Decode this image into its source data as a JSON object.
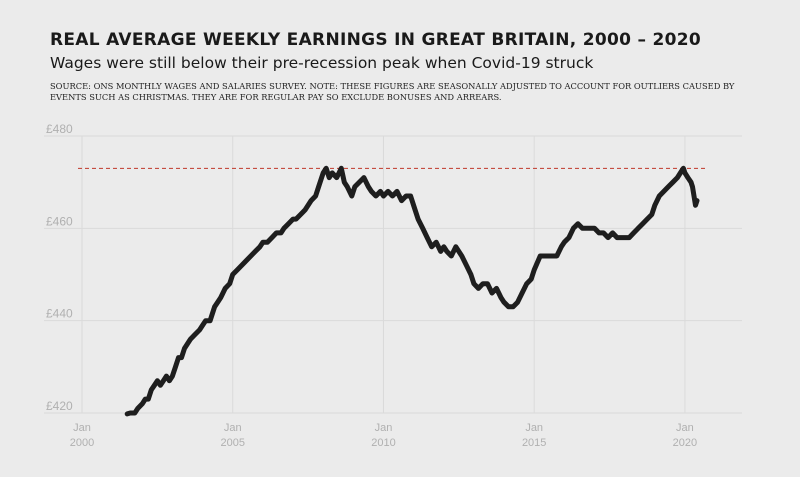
{
  "header": {
    "title": "REAL AVERAGE WEEKLY EARNINGS IN GREAT BRITAIN, 2000 – 2020",
    "subtitle": "Wages were still below their pre-recession peak when Covid-19 struck",
    "source": "SOURCE: ONS MONTHLY WAGES AND SALARIES SURVEY. NOTE: THESE FIGURES ARE SEASONALLY ADJUSTED TO ACCOUNT FOR OUTLIERS CAUSED BY EVENTS SUCH AS CHRISTMAS.  THEY ARE FOR REGULAR PAY SO EXCLUDE BONUSES AND ARREARS."
  },
  "colors": {
    "line": "#1e1e1e",
    "reference": "#c0392b",
    "grid": "#dadada",
    "background": "#ebebeb"
  },
  "chart_data": {
    "type": "line",
    "title": "REAL AVERAGE WEEKLY EARNINGS IN GREAT BRITAIN, 2000 – 2020",
    "subtitle": "Wages were still below their pre-recession peak when Covid-19 struck",
    "xlabel": "",
    "ylabel": "",
    "xlim": [
      2000.0,
      2020.5
    ],
    "ylim": [
      420,
      480
    ],
    "y_ticks": [
      420,
      440,
      460,
      480
    ],
    "y_tick_labels": [
      "£420",
      "£440",
      "£460",
      "£480"
    ],
    "x_ticks": [
      2000,
      2005,
      2010,
      2015,
      2020
    ],
    "x_tick_labels": [
      {
        "top": "Jan",
        "bottom": "2000"
      },
      {
        "top": "Jan",
        "bottom": "2005"
      },
      {
        "top": "Jan",
        "bottom": "2010"
      },
      {
        "top": "Jan",
        "bottom": "2015"
      },
      {
        "top": "Jan",
        "bottom": "2020"
      }
    ],
    "grid": "horizontal and vertical",
    "reference_line": {
      "y": 473,
      "style": "dashed",
      "color": "#c0392b"
    },
    "series": [
      {
        "x": [
          2001.5,
          2001.6,
          2001.75,
          2001.85,
          2002.0,
          2002.1,
          2002.2,
          2002.3,
          2002.4,
          2002.5,
          2002.6,
          2002.7,
          2002.8,
          2002.9,
          2003.0,
          2003.1,
          2003.2,
          2003.3,
          2003.4,
          2003.5,
          2003.6,
          2003.75,
          2003.9,
          2004.0,
          2004.1,
          2004.25,
          2004.4,
          2004.5,
          2004.6,
          2004.75,
          2004.9,
          2005.0,
          2005.15,
          2005.3,
          2005.45,
          2005.6,
          2005.75,
          2005.9,
          2006.0,
          2006.15,
          2006.3,
          2006.45,
          2006.6,
          2006.7,
          2006.85,
          2007.0,
          2007.1,
          2007.25,
          2007.4,
          2007.5,
          2007.6,
          2007.75,
          2007.85,
          2008.0,
          2008.1,
          2008.2,
          2008.3,
          2008.45,
          2008.6,
          2008.7,
          2008.8,
          2008.95,
          2009.05,
          2009.2,
          2009.35,
          2009.5,
          2009.6,
          2009.75,
          2009.9,
          2010.0,
          2010.15,
          2010.3,
          2010.45,
          2010.6,
          2010.75,
          2010.9,
          2011.0,
          2011.15,
          2011.3,
          2011.45,
          2011.6,
          2011.75,
          2011.9,
          2012.0,
          2012.1,
          2012.25,
          2012.4,
          2012.5,
          2012.6,
          2012.75,
          2012.9,
          2013.0,
          2013.15,
          2013.3,
          2013.45,
          2013.6,
          2013.75,
          2013.9,
          2014.0,
          2014.15,
          2014.3,
          2014.45,
          2014.6,
          2014.75,
          2014.9,
          2015.0,
          2015.2,
          2015.4,
          2015.6,
          2015.75,
          2015.9,
          2016.0,
          2016.15,
          2016.3,
          2016.45,
          2016.6,
          2016.75,
          2016.9,
          2017.0,
          2017.15,
          2017.3,
          2017.45,
          2017.6,
          2017.75,
          2017.9,
          2018.0,
          2018.15,
          2018.3,
          2018.45,
          2018.6,
          2018.75,
          2018.9,
          2019.0,
          2019.15,
          2019.3,
          2019.45,
          2019.6,
          2019.75,
          2019.85,
          2019.95,
          2020.0,
          2020.1,
          2020.2,
          2020.25,
          2020.3,
          2020.35,
          2020.4
        ],
        "y": [
          419.8,
          420,
          420,
          421,
          422,
          423,
          423,
          425,
          426,
          427,
          426,
          427,
          428,
          427,
          428,
          430,
          432,
          432,
          434,
          435,
          436,
          437,
          438,
          439,
          440,
          440,
          443,
          444,
          445,
          447,
          448,
          450,
          451,
          452,
          453,
          454,
          455,
          456,
          457,
          457,
          458,
          459,
          459,
          460,
          461,
          462,
          462,
          463,
          464,
          465,
          466,
          467,
          469,
          472,
          473,
          471,
          472,
          471,
          473,
          470,
          469,
          467,
          469,
          470,
          471,
          469,
          468,
          467,
          468,
          467,
          468,
          467,
          468,
          466,
          467,
          467,
          465,
          462,
          460,
          458,
          456,
          457,
          455,
          456,
          455,
          454,
          456,
          455,
          454,
          452,
          450,
          448,
          447,
          448,
          448,
          446,
          447,
          445,
          444,
          443,
          443,
          444,
          446,
          448,
          449,
          451,
          454,
          454,
          454,
          454,
          456,
          457,
          458,
          460,
          461,
          460,
          460,
          460,
          460,
          459,
          459,
          458,
          459,
          458,
          458,
          458,
          458,
          459,
          460,
          461,
          462,
          463,
          465,
          467,
          468,
          469,
          470,
          471,
          472,
          473,
          472,
          471,
          470,
          469,
          467,
          465,
          466
        ]
      }
    ]
  }
}
